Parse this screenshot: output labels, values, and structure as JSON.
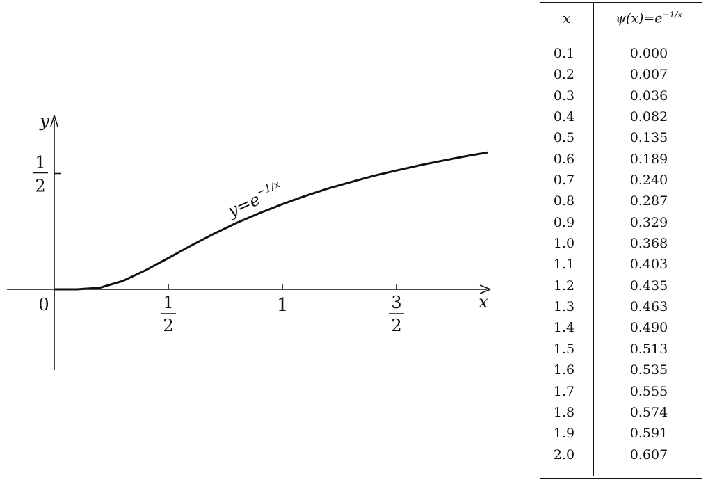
{
  "chart_data": {
    "type": "line",
    "title": "",
    "function_label": "y=e^{-1/x}",
    "function_label_parts": {
      "lhs": "y=e",
      "exp": "−1/x"
    },
    "xlabel": "x",
    "ylabel": "y",
    "origin_label": "0",
    "x_ticks": [
      {
        "value": 0.5,
        "label_num": "1",
        "label_den": "2"
      },
      {
        "value": 1.0,
        "label": "1"
      },
      {
        "value": 1.5,
        "label_num": "3",
        "label_den": "2"
      }
    ],
    "y_ticks": [
      {
        "value": 0.5,
        "label_num": "1",
        "label_den": "2"
      }
    ],
    "xlim": [
      -0.2,
      1.9
    ],
    "ylim": [
      -0.35,
      0.75
    ],
    "series": [
      {
        "values_source": "table",
        "x": [
          0.1,
          0.2,
          0.3,
          0.4,
          0.5,
          0.6,
          0.7,
          0.8,
          0.9,
          1.0,
          1.1,
          1.2,
          1.3,
          1.4,
          1.5,
          1.6,
          1.7,
          1.8,
          1.9
        ],
        "y": [
          0.0,
          0.007,
          0.036,
          0.082,
          0.135,
          0.189,
          0.24,
          0.287,
          0.329,
          0.368,
          0.403,
          0.435,
          0.463,
          0.49,
          0.513,
          0.535,
          0.555,
          0.574,
          0.591
        ]
      }
    ]
  },
  "table": {
    "header_x": "x",
    "header_psi": "ψ(x)=e",
    "header_psi_exp": "−1/x",
    "rows": [
      {
        "x": "0.1",
        "psi": "0.000"
      },
      {
        "x": "0.2",
        "psi": "0.007"
      },
      {
        "x": "0.3",
        "psi": "0.036"
      },
      {
        "x": "0.4",
        "psi": "0.082"
      },
      {
        "x": "0.5",
        "psi": "0.135"
      },
      {
        "x": "0.6",
        "psi": "0.189"
      },
      {
        "x": "0.7",
        "psi": "0.240"
      },
      {
        "x": "0.8",
        "psi": "0.287"
      },
      {
        "x": "0.9",
        "psi": "0.329"
      },
      {
        "x": "1.0",
        "psi": "0.368"
      },
      {
        "x": "1.1",
        "psi": "0.403"
      },
      {
        "x": "1.2",
        "psi": "0.435"
      },
      {
        "x": "1.3",
        "psi": "0.463"
      },
      {
        "x": "1.4",
        "psi": "0.490"
      },
      {
        "x": "1.5",
        "psi": "0.513"
      },
      {
        "x": "1.6",
        "psi": "0.535"
      },
      {
        "x": "1.7",
        "psi": "0.555"
      },
      {
        "x": "1.8",
        "psi": "0.574"
      },
      {
        "x": "1.9",
        "psi": "0.591"
      },
      {
        "x": "2.0",
        "psi": "0.607"
      }
    ]
  }
}
